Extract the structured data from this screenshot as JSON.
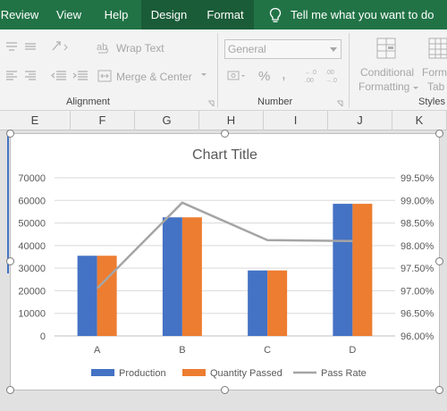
{
  "ribbon_tabs": {
    "review": "Review",
    "view": "View",
    "help": "Help",
    "design": "Design",
    "format": "Format",
    "tell_me": "Tell me what you want to do"
  },
  "ribbon": {
    "wrap_text": "Wrap Text",
    "merge_center": "Merge & Center",
    "alignment_group": "Alignment",
    "number_format": "General",
    "number_group": "Number",
    "conditional_formatting_line1": "Conditional",
    "conditional_formatting_line2": "Formatting",
    "format_as_table_line1": "Forma",
    "format_as_table_line2": "Tab",
    "styles_group": "Styles",
    "percent_symbol": "%",
    "comma_symbol": ","
  },
  "columns": [
    "E",
    "F",
    "G",
    "H",
    "I",
    "J",
    "K"
  ],
  "colors": {
    "excel_green": "#217346",
    "production": "#4472c4",
    "quantity_passed": "#ed7d31",
    "pass_rate": "#a5a5a5"
  },
  "chart_data": {
    "type": "bar",
    "title": "Chart Title",
    "categories": [
      "A",
      "B",
      "C",
      "D"
    ],
    "series": [
      {
        "name": "Production",
        "type": "bar",
        "axis": "primary",
        "values": [
          35500,
          52500,
          29000,
          58500
        ]
      },
      {
        "name": "Quantity Passed",
        "type": "bar",
        "axis": "primary",
        "values": [
          35500,
          52500,
          29000,
          58500
        ]
      },
      {
        "name": "Pass Rate",
        "type": "line",
        "axis": "secondary",
        "values": [
          97.05,
          98.95,
          98.12,
          98.1
        ]
      }
    ],
    "ylim": [
      0,
      70000
    ],
    "y_ticks": [
      "70000",
      "60000",
      "50000",
      "40000",
      "30000",
      "20000",
      "10000",
      "0"
    ],
    "y2lim": [
      96.0,
      99.5
    ],
    "y2_ticks": [
      "99.50%",
      "99.00%",
      "98.50%",
      "98.00%",
      "97.50%",
      "97.00%",
      "96.50%",
      "96.00%"
    ],
    "grid": true,
    "legend": "bottom"
  }
}
